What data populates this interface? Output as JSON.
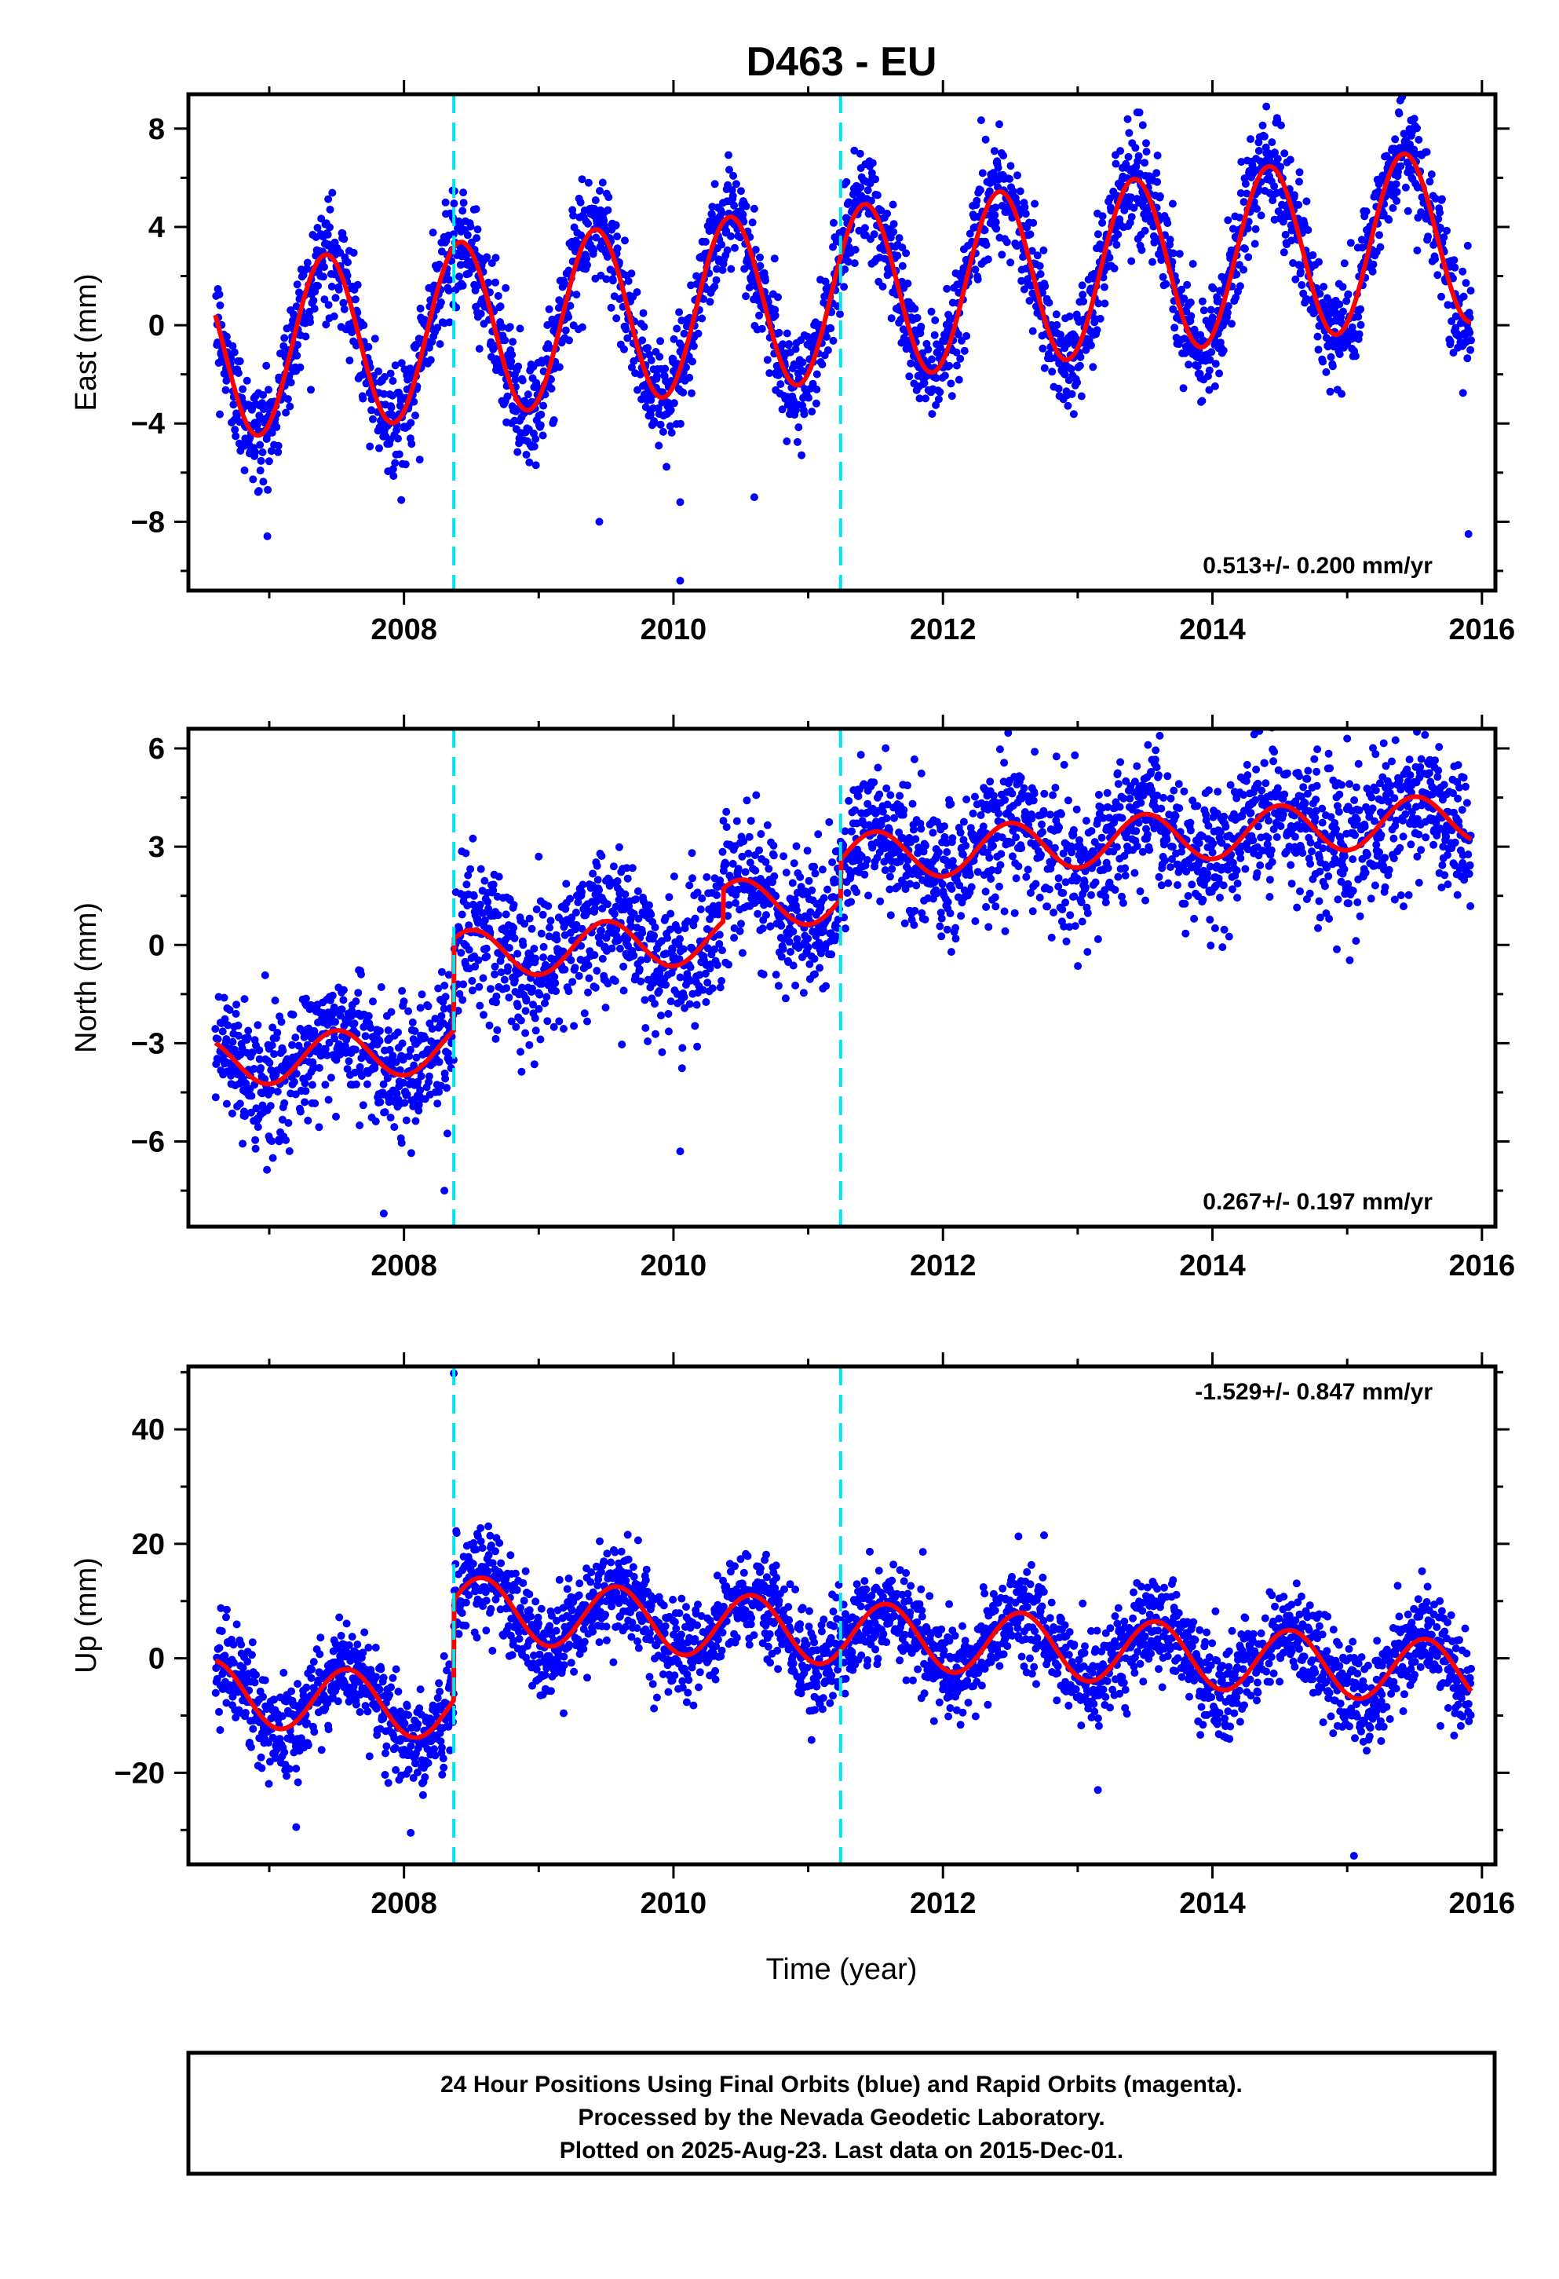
{
  "chart_title": "D463 - EU",
  "x_axis_label": "Time (year)",
  "footer_lines": [
    "24 Hour Positions Using Final Orbits (blue) and Rapid Orbits (magenta).",
    "Processed by the Nevada Geodetic Laboratory.",
    "Plotted on 2025-Aug-23. Last data on 2015-Dec-01."
  ],
  "colors": {
    "points": "#0000ff",
    "model": "#ff0000",
    "offset_lines": "#00e5ee"
  },
  "chart_data": [
    {
      "type": "scatter",
      "component": "East",
      "ylabel": "East (mm)",
      "rate_text": "0.513+/- 0.200 mm/yr",
      "xlim": [
        2006.4,
        2016.1
      ],
      "ylim": [
        -10.8,
        9.4
      ],
      "xticks": [
        2008,
        2010,
        2012,
        2014,
        2016
      ],
      "yticks": [
        -8,
        -4,
        0,
        4,
        8
      ],
      "ytick_labels": [
        "−8",
        "−4",
        "0",
        "4",
        "8"
      ],
      "offset_lines_x": [
        2008.37,
        2011.24
      ],
      "model": {
        "start": 2006.6,
        "end": 2015.92,
        "mean_at_start": -1.1,
        "rate": 0.513,
        "amplitude": 3.55,
        "peak_year_fraction": 0.42,
        "offsets": [],
        "semiannual_amplitude": 0
      },
      "noise_sd": 1.1,
      "outliers": [
        [
          2010.05,
          -10.4
        ],
        [
          2015.9,
          -8.5
        ],
        [
          2010.05,
          -7.2
        ],
        [
          2010.6,
          -7.0
        ],
        [
          2009.45,
          -8.0
        ],
        [
          2014.4,
          8.9
        ]
      ]
    },
    {
      "type": "scatter",
      "component": "North",
      "ylabel": "North (mm)",
      "rate_text": "0.267+/- 0.197 mm/yr",
      "xlim": [
        2006.4,
        2016.1
      ],
      "ylim": [
        -8.6,
        6.6
      ],
      "xticks": [
        2008,
        2010,
        2012,
        2014,
        2016
      ],
      "yticks": [
        -6,
        -3,
        0,
        3,
        6
      ],
      "ytick_labels": [
        "−6",
        "−3",
        "0",
        "3",
        "6"
      ],
      "offset_lines_x": [
        2008.37,
        2011.24
      ],
      "model": {
        "start": 2006.6,
        "end": 2015.92,
        "mean_at_start": -3.6,
        "rate": 0.267,
        "amplitude": 0.75,
        "peak_year_fraction": 0.5,
        "offsets": [
          [
            2008.37,
            2.8
          ],
          [
            2010.37,
            1.0
          ],
          [
            2011.24,
            1.2
          ]
        ],
        "semiannual_amplitude": 0
      },
      "noise_sd": 1.05,
      "outliers": [
        [
          2007.85,
          -8.2
        ],
        [
          2008.3,
          -7.5
        ],
        [
          2010.05,
          -6.3
        ],
        [
          2015.0,
          6.3
        ],
        [
          2009.0,
          2.7
        ],
        [
          2012.9,
          5.5
        ]
      ]
    },
    {
      "type": "scatter",
      "component": "Up",
      "ylabel": "Up (mm)",
      "rate_text": "-1.529+/- 0.847 mm/yr",
      "xlim": [
        2006.4,
        2016.1
      ],
      "ylim": [
        -36,
        51
      ],
      "xticks": [
        2008,
        2010,
        2012,
        2014,
        2016
      ],
      "yticks": [
        -20,
        0,
        20,
        40
      ],
      "ytick_labels": [
        "−20",
        "0",
        "20",
        "40"
      ],
      "offset_lines_x": [
        2008.37,
        2011.24
      ],
      "model": {
        "start": 2006.6,
        "end": 2015.92,
        "mean_at_start": -6.0,
        "rate": -1.529,
        "amplitude": 5.6,
        "peak_year_fraction": 0.58,
        "offsets": [
          [
            2008.37,
            17.5
          ]
        ],
        "semiannual_amplitude": 0
      },
      "noise_sd": 4.2,
      "outliers": [
        [
          2008.37,
          49.8
        ],
        [
          2015.05,
          -34.5
        ],
        [
          2013.15,
          -23.0
        ],
        [
          2007.2,
          -29.5
        ],
        [
          2008.05,
          -30.5
        ],
        [
          2012.75,
          21.5
        ]
      ]
    }
  ]
}
